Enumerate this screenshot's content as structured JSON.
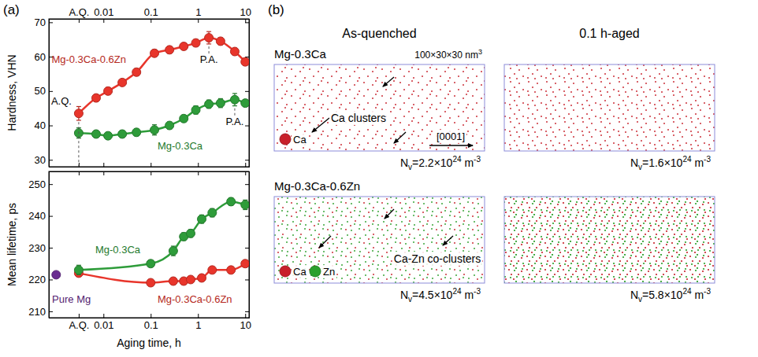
{
  "figure_labels": [
    "(a)",
    "(b)"
  ],
  "chart_data": [
    {
      "type": "line",
      "log": "x",
      "marker": "circle",
      "xlim": [
        0.0007,
        12
      ],
      "xticks": [
        {
          "value": 0.003,
          "label": "A.Q."
        },
        0.01,
        0.1,
        1,
        10
      ],
      "ylim": [
        28,
        71
      ],
      "yticks": [
        30,
        40,
        50,
        60,
        70
      ],
      "y_label": "Hardness, VHN",
      "series": [
        {
          "name": "Mg-0.3Ca-0.6Zn",
          "color": "#e8352b",
          "x": [
            0.003,
            0.007,
            0.0125,
            0.025,
            0.05,
            0.12,
            0.25,
            0.5,
            0.9,
            1.7,
            3,
            6,
            10
          ],
          "values": [
            43.5,
            48,
            50,
            52.5,
            55.5,
            61,
            62,
            63,
            64,
            65.5,
            64.5,
            61.5,
            58.5
          ],
          "errors": [
            2,
            1,
            1,
            0.8,
            1,
            1,
            1,
            1,
            1,
            1.8,
            1,
            1,
            1
          ]
        },
        {
          "name": "Mg-0.3Ca",
          "color": "#2e9c3a",
          "x": [
            0.003,
            0.007,
            0.0125,
            0.025,
            0.05,
            0.12,
            0.25,
            0.5,
            0.9,
            1.7,
            3,
            6,
            10
          ],
          "values": [
            37.8,
            37.5,
            37,
            37.5,
            38,
            38.7,
            40,
            42,
            44.5,
            46.2,
            46.5,
            47.5,
            46.5
          ],
          "errors": [
            1.5,
            1,
            1,
            1,
            1,
            1.5,
            1,
            1,
            1.2,
            1.2,
            1.3,
            1.8,
            1
          ]
        }
      ],
      "annotations": [
        {
          "text": "A.Q.",
          "x": 0.003,
          "y": 43.5
        },
        {
          "text": "P.A.",
          "x": 1.7,
          "y": 65.5
        },
        {
          "text": "P.A.",
          "x": 6,
          "y": 47.5
        }
      ]
    },
    {
      "type": "line",
      "log": "x",
      "marker": "circle",
      "xlim": [
        0.0007,
        12
      ],
      "xticks": [
        {
          "value": 0.003,
          "label": "A.Q."
        },
        0.01,
        0.1,
        1,
        10
      ],
      "x_label": "Aging time, h",
      "ylim": [
        208,
        254
      ],
      "yticks": [
        210,
        220,
        230,
        240,
        250
      ],
      "y_label": "Mean lifetime, ps",
      "series": [
        {
          "name": "Mg-0.3Ca-0.6Zn",
          "color": "#e8352b",
          "x": [
            0.003,
            0.1,
            0.3,
            0.5,
            0.7,
            1.2,
            2,
            5,
            10
          ],
          "values": [
            222,
            219,
            219.5,
            219.5,
            220,
            220.5,
            223,
            223,
            225
          ],
          "errors": [
            1,
            1,
            1,
            1,
            1,
            1,
            1,
            1,
            1
          ]
        },
        {
          "name": "Mg-0.3Ca",
          "color": "#2e9c3a",
          "x": [
            0.003,
            0.1,
            0.3,
            0.5,
            0.7,
            1.2,
            2,
            5,
            10
          ],
          "values": [
            223,
            225,
            229,
            233.5,
            234.5,
            239,
            241,
            244.5,
            243.5
          ],
          "errors": [
            1.5,
            1,
            1.5,
            1.2,
            1.2,
            1.3,
            1.3,
            1.2,
            1.5
          ]
        },
        {
          "name": "Pure Mg",
          "type": "scatter",
          "color": "#6a2c91",
          "x": [
            0.001
          ],
          "values": [
            221.5
          ]
        }
      ]
    }
  ],
  "panel_b": {
    "columns": [
      "As-quenched",
      "0.1 h-aged"
    ],
    "box_size": {
      "text": "100×30×30 nm",
      "sup": "3"
    },
    "direction": "[0001]",
    "density_format": {
      "symbol": "N",
      "subscript": "v",
      "equals": "=",
      "times": "×10",
      "unit": " m",
      "unit_exponent": "-3"
    },
    "rows": [
      {
        "title": "Mg-0.3Ca",
        "annotation": "Ca clusters",
        "legend": [
          {
            "name": "Ca",
            "color": "#c8202a"
          }
        ],
        "densities": [
          {
            "value": 2.2,
            "exponent": 24
          },
          {
            "value": 1.6,
            "exponent": 24
          }
        ]
      },
      {
        "title": "Mg-0.3Ca-0.6Zn",
        "annotation": "Ca-Zn co-clusters",
        "legend": [
          {
            "name": "Ca",
            "color": "#c8202a"
          },
          {
            "name": "Zn",
            "color": "#2ca02c"
          }
        ],
        "densities": [
          {
            "value": 4.5,
            "exponent": 24
          },
          {
            "value": 5.8,
            "exponent": 24
          }
        ]
      }
    ]
  }
}
